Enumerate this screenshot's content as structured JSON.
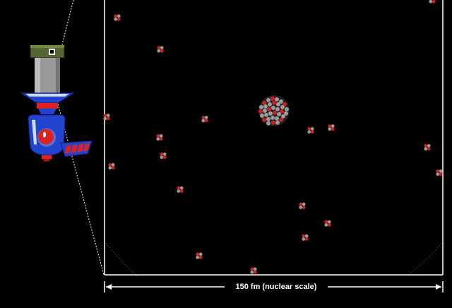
{
  "scale_bar": {
    "label": "150 fm (nuclear scale)"
  },
  "colors": {
    "background": "#000000",
    "frame": "#ffffff",
    "proton": "#cc2222",
    "neutron": "#9a9a9a",
    "gun_body": "#2244cc",
    "gun_accent": "#dd2222",
    "gun_cap": "#556633",
    "gun_barrel": "#999999"
  },
  "icons": {
    "source": "alpha-particle-gun-icon",
    "nucleus": "atomic-nucleus-icon",
    "particle": "alpha-particle-icon"
  }
}
